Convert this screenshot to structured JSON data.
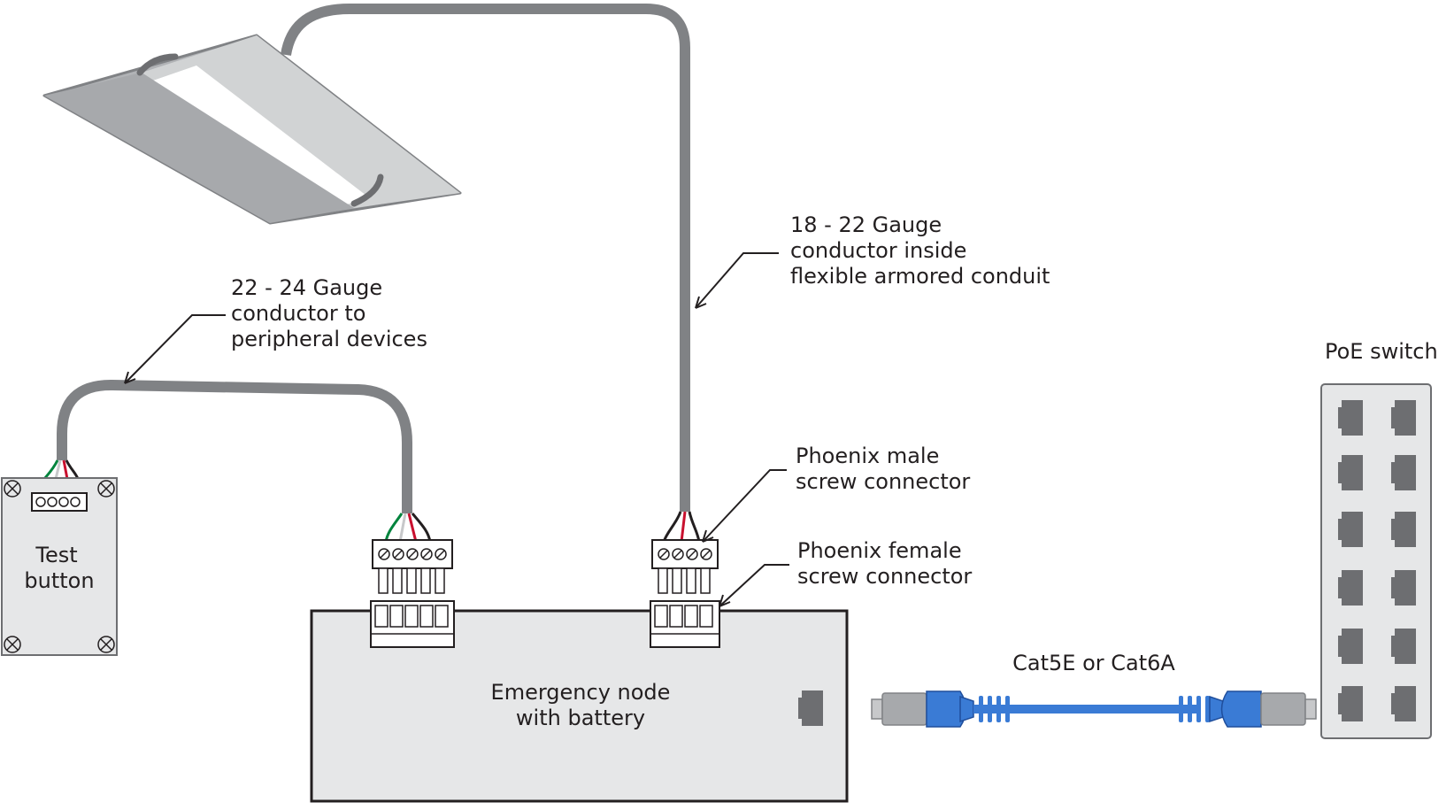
{
  "labels": {
    "conduit_wire": [
      "18 - 22 Gauge",
      "conductor inside",
      "flexible armored conduit"
    ],
    "peripheral_wire": [
      "22 - 24 Gauge",
      "conductor to",
      "peripheral devices"
    ],
    "phoenix_male": [
      "Phoenix male",
      "screw connector"
    ],
    "phoenix_female": [
      "Phoenix female",
      "screw connector"
    ],
    "poe_switch": "PoE switch",
    "test_button": [
      "Test",
      "button"
    ],
    "emergency_node": [
      "Emergency node",
      "with battery"
    ],
    "ethernet_cable": "Cat5E or Cat6A"
  },
  "colors": {
    "wire_gray": "#808285",
    "cable_blue": "#3a7bd5",
    "wire_green": "#00843d",
    "wire_red": "#c8102e",
    "wire_black": "#231f20",
    "wire_white": "#c7c8ca",
    "fixture_gray": "#a7a9ac",
    "port_gray": "#6d6e71"
  },
  "icons": {
    "fixture": "troffer-light-fixture-icon",
    "switch": "poe-switch-icon",
    "connector": "phoenix-connector-icon"
  }
}
